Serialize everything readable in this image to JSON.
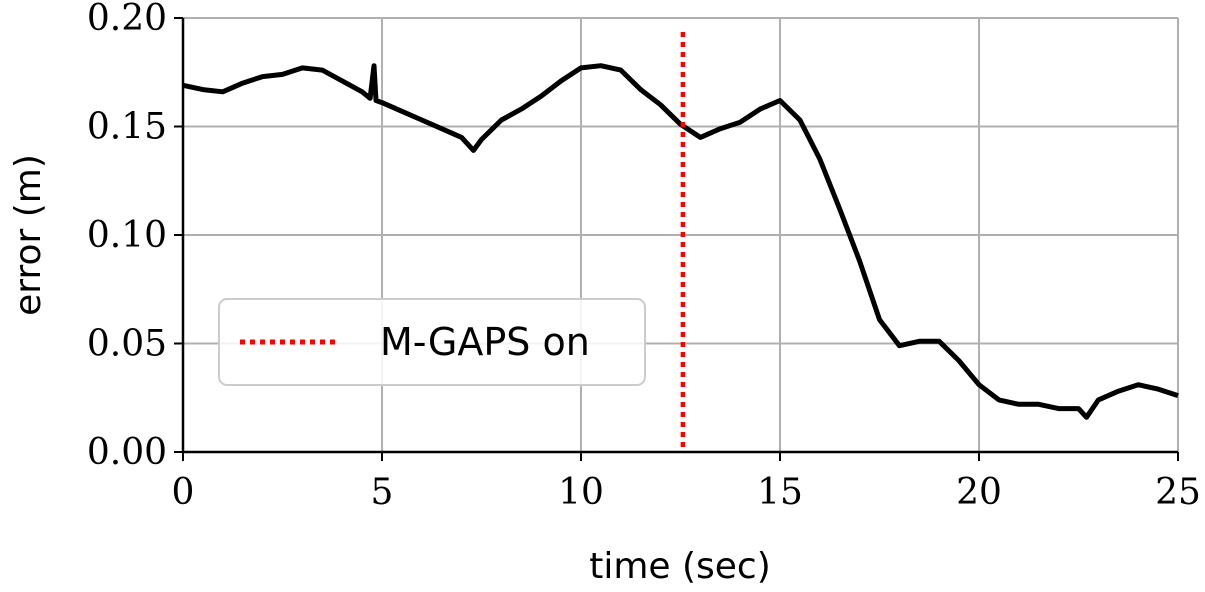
{
  "chart_data": {
    "type": "line",
    "title": "",
    "xlabel": "time (sec)",
    "ylabel": "error (m)",
    "xlim": [
      0,
      25
    ],
    "ylim": [
      0,
      0.2
    ],
    "xticks": [
      0,
      5,
      10,
      15,
      20,
      25
    ],
    "xtick_labels": [
      "0",
      "5",
      "10",
      "15",
      "20",
      "25"
    ],
    "yticks": [
      0,
      0.05,
      0.1,
      0.15,
      0.2
    ],
    "ytick_labels": [
      "0.00",
      "0.05",
      "0.10",
      "0.15",
      "0.20"
    ],
    "grid": true,
    "series": [
      {
        "name": "error",
        "color": "#000000",
        "x": [
          0,
          0.5,
          1,
          1.5,
          2,
          2.5,
          3,
          3.5,
          4,
          4.5,
          4.7,
          4.8,
          4.85,
          5,
          5.5,
          6,
          6.5,
          7,
          7.3,
          7.5,
          8,
          8.5,
          9,
          9.5,
          10,
          10.5,
          11,
          11.5,
          12,
          12.5,
          13,
          13.5,
          14,
          14.5,
          15,
          15.5,
          16,
          16.5,
          17,
          17.5,
          18,
          18.5,
          19,
          19.5,
          20,
          20.5,
          21,
          21.5,
          22,
          22.5,
          22.7,
          23,
          23.5,
          24,
          24.5,
          25
        ],
        "y": [
          0.169,
          0.167,
          0.166,
          0.17,
          0.173,
          0.174,
          0.177,
          0.176,
          0.171,
          0.166,
          0.163,
          0.178,
          0.162,
          0.161,
          0.157,
          0.153,
          0.149,
          0.145,
          0.139,
          0.144,
          0.153,
          0.158,
          0.164,
          0.171,
          0.177,
          0.178,
          0.176,
          0.167,
          0.16,
          0.151,
          0.145,
          0.149,
          0.152,
          0.158,
          0.162,
          0.153,
          0.135,
          0.112,
          0.088,
          0.061,
          0.049,
          0.051,
          0.051,
          0.042,
          0.031,
          0.024,
          0.022,
          0.022,
          0.02,
          0.02,
          0.016,
          0.024,
          0.028,
          0.031,
          0.029,
          0.026
        ]
      }
    ],
    "vline": {
      "x": 12.56,
      "color": "#ff0000",
      "label": "M-GAPS on",
      "style": "dotted"
    },
    "legend": {
      "entries": [
        "M-GAPS on"
      ],
      "placement": "lower-left"
    }
  }
}
